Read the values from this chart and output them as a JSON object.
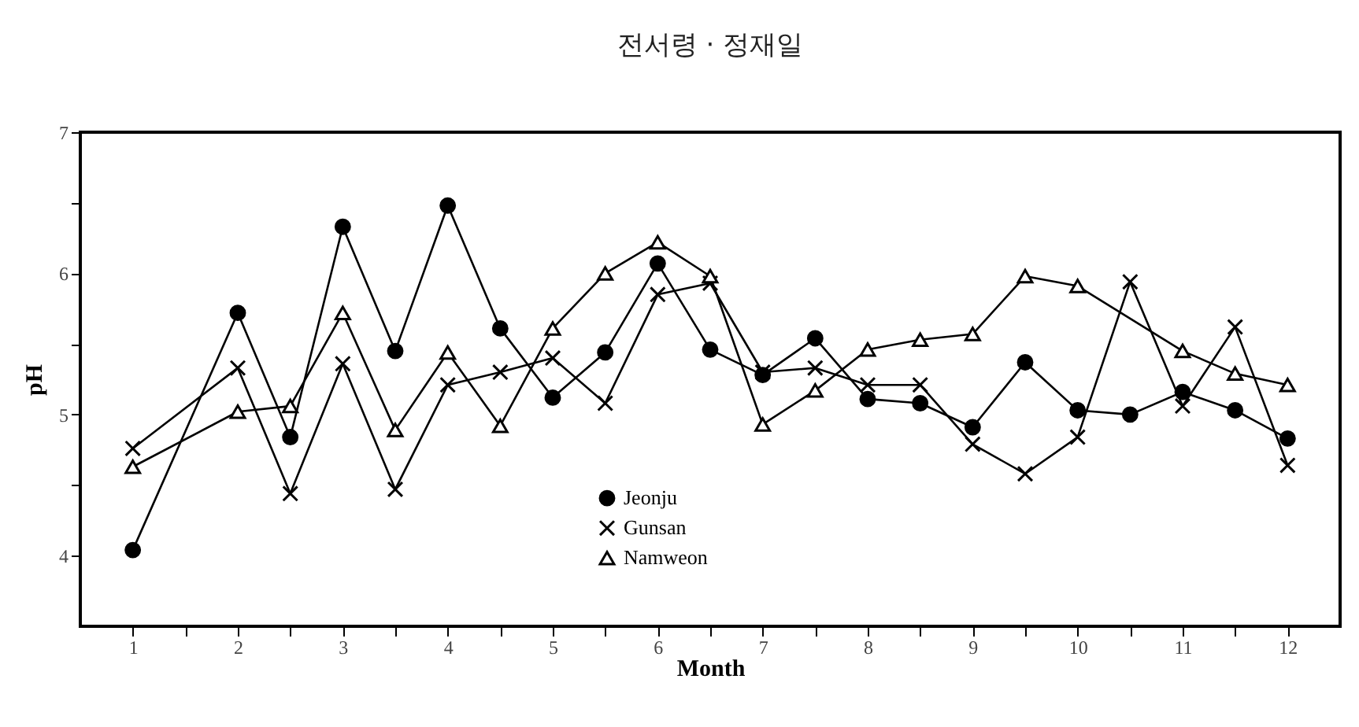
{
  "chart_data": {
    "type": "line",
    "title": "전서령 · 정재일",
    "xlabel": "Month",
    "ylabel": "pH",
    "xlim": [
      0.5,
      12.5
    ],
    "ylim": [
      3.5,
      7
    ],
    "xticks": [
      1,
      {
        "value": 1.5,
        "label": null
      },
      2,
      {
        "value": 2.5,
        "label": null
      },
      3,
      {
        "value": 3.5,
        "label": null
      },
      4,
      {
        "value": 4.5,
        "label": null
      },
      5,
      {
        "value": 5.5,
        "label": null
      },
      6,
      {
        "value": 6.5,
        "label": null
      },
      7,
      {
        "value": 7.5,
        "label": null
      },
      8,
      {
        "value": 8.5,
        "label": null
      },
      9,
      {
        "value": 9.5,
        "label": null
      },
      10,
      {
        "value": 10.5,
        "label": null
      },
      11,
      {
        "value": 11.5,
        "label": null
      },
      12
    ],
    "yticks": [
      4,
      {
        "value": 4.5,
        "label": null
      },
      5,
      {
        "value": 5.5,
        "label": null
      },
      6,
      {
        "value": 6.5,
        "label": null
      },
      7
    ],
    "grid": false,
    "legend": "bottom",
    "line_style": "solid",
    "series": [
      {
        "name": "Jeonju",
        "color": "#000000",
        "marker": "circle",
        "x": [
          1,
          2,
          2.5,
          3,
          3.5,
          4,
          4.5,
          5,
          5.5,
          6,
          6.5,
          7,
          7.5,
          8,
          8.5,
          9,
          9.5,
          10,
          10.5,
          11,
          11.5,
          12
        ],
        "values": [
          4.04,
          5.72,
          4.84,
          6.33,
          5.45,
          6.48,
          5.61,
          5.12,
          5.44,
          6.07,
          5.46,
          5.28,
          5.54,
          5.11,
          5.08,
          4.91,
          5.37,
          5.03,
          5.0,
          5.16,
          5.03,
          4.83
        ]
      },
      {
        "name": "Gunsan",
        "color": "#000000",
        "marker": "cross",
        "x": [
          1,
          2,
          2.5,
          3,
          3.5,
          4,
          4.5,
          5,
          5.5,
          6,
          6.5,
          7,
          7.5,
          8,
          8.5,
          9,
          9.5,
          10,
          10.5,
          11,
          11.5,
          12
        ],
        "values": [
          4.76,
          5.33,
          4.44,
          5.36,
          4.47,
          5.21,
          5.3,
          5.4,
          5.08,
          5.85,
          5.93,
          5.3,
          5.33,
          5.21,
          5.21,
          4.79,
          4.58,
          4.84,
          5.94,
          5.06,
          5.62,
          4.64
        ]
      },
      {
        "name": "Namweon",
        "color": "#000000",
        "marker": "triangle",
        "x": [
          1,
          2,
          2.5,
          3,
          3.5,
          4,
          4.5,
          5,
          5.5,
          6,
          6.5,
          7,
          7.5,
          8,
          8.5,
          9,
          9.5,
          10,
          11,
          11.5,
          12
        ],
        "values": [
          4.63,
          5.02,
          5.06,
          5.72,
          4.89,
          5.44,
          4.92,
          5.61,
          6.0,
          6.22,
          5.98,
          4.93,
          5.17,
          5.46,
          5.53,
          5.57,
          5.98,
          5.91,
          5.45,
          5.29,
          5.21
        ]
      }
    ]
  }
}
